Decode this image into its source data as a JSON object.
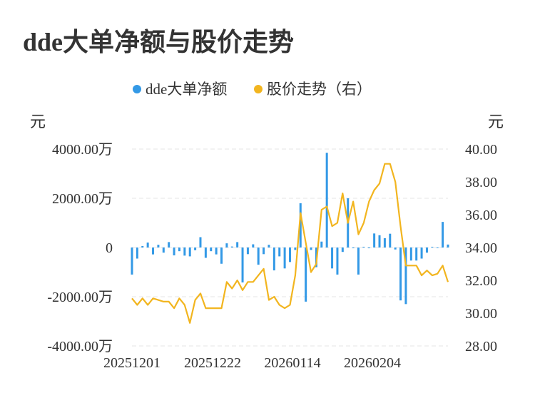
{
  "title": "dde大单净额与股价走势",
  "colors": {
    "bar": "#3399e6",
    "line": "#f2b51f",
    "grid": "#e6e6e6",
    "text": "#333333",
    "axis": "#cccccc"
  },
  "chart_data": {
    "type": "bar+line",
    "legend": [
      {
        "name": "dde大单净额",
        "color": "#3399e6"
      },
      {
        "name": "股价走势（右）",
        "color": "#f2b51f"
      }
    ],
    "legend_position": "top-center",
    "left_axis": {
      "unit": "元",
      "range": [
        -4000,
        4000
      ],
      "ticks": [
        "4000.00万",
        "2000.00万",
        "0",
        "-2000.00万",
        "-4000.00万"
      ]
    },
    "right_axis": {
      "unit": "元",
      "range": [
        28,
        40
      ],
      "ticks": [
        "40.00",
        "38.00",
        "36.00",
        "34.00",
        "32.00",
        "30.00",
        "28.00"
      ]
    },
    "x_tick_labels": [
      "20251201",
      "20251222",
      "20260114",
      "20260204"
    ],
    "grid": true,
    "series": [
      {
        "name": "dde大单净额",
        "type": "bar",
        "values": [
          -1100,
          -450,
          60,
          200,
          -280,
          110,
          -210,
          220,
          -320,
          -150,
          -330,
          -360,
          -110,
          420,
          -420,
          -150,
          -280,
          -660,
          170,
          40,
          220,
          -1420,
          -270,
          130,
          -700,
          -270,
          110,
          -930,
          -360,
          -850,
          -590,
          -100,
          1800,
          -2200,
          -100,
          -800,
          240,
          3850,
          -850,
          -1100,
          -180,
          2000,
          -30,
          -1100,
          30,
          -30,
          570,
          500,
          380,
          560,
          -80,
          -2150,
          -2300,
          -530,
          -530,
          -450,
          -210,
          30,
          -20,
          1040,
          120
        ]
      },
      {
        "name": "股价走势（右）",
        "type": "line",
        "values": [
          30.9,
          30.5,
          30.9,
          30.5,
          30.9,
          30.8,
          30.7,
          30.7,
          30.3,
          30.9,
          30.5,
          29.4,
          30.8,
          31.2,
          30.3,
          30.3,
          30.3,
          30.3,
          31.9,
          31.5,
          32.0,
          31.4,
          31.9,
          31.9,
          32.3,
          32.7,
          30.8,
          31.0,
          30.5,
          30.3,
          30.5,
          32.3,
          36.1,
          34.3,
          32.5,
          33.0,
          36.3,
          36.5,
          35.3,
          35.5,
          37.3,
          35.5,
          36.8,
          34.8,
          35.5,
          36.8,
          37.5,
          37.9,
          39.1,
          39.1,
          38.0,
          35.3,
          32.9,
          32.9,
          32.9,
          32.3,
          32.6,
          32.3,
          32.4,
          32.9,
          31.9
        ]
      }
    ]
  }
}
